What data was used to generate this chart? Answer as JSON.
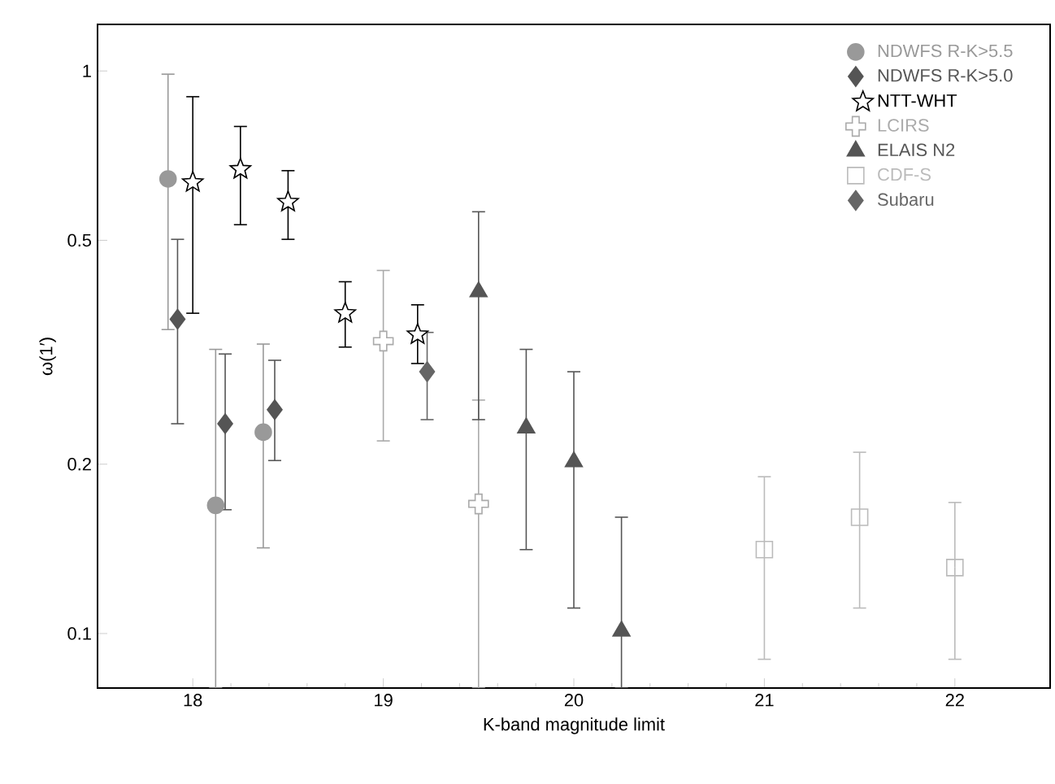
{
  "chart_data": {
    "type": "scatter",
    "xlabel": "K-band magnitude limit",
    "ylabel": "ω(1′)",
    "log": "y",
    "xlim": [
      17.5,
      22.5
    ],
    "xticks": [
      18,
      19,
      20,
      21,
      22
    ],
    "ylim": [
      0.08,
      1.21
    ],
    "yticks": [
      0.1,
      0.2,
      0.5,
      1
    ],
    "legend": "top right",
    "series": [
      {
        "name": "NDWFS R-K>5.5",
        "color": "#999999",
        "marker": "circle",
        "x": [
          17.87,
          18.12,
          18.37
        ],
        "values": [
          0.643,
          0.169,
          0.228
        ],
        "errors": [
          [
            0.347,
            0.987
          ],
          [
            0.08,
            0.32
          ],
          [
            0.142,
            0.327
          ]
        ]
      },
      {
        "name": "NDWFS R-K>5.0",
        "color": "#555555",
        "marker": "diamond",
        "x": [
          17.92,
          18.17,
          18.43
        ],
        "values": [
          0.362,
          0.236,
          0.25
        ],
        "errors": [
          [
            0.236,
            0.502
          ],
          [
            0.166,
            0.314
          ],
          [
            0.203,
            0.306
          ]
        ]
      },
      {
        "name": "NTT-WHT",
        "color": "#000000",
        "marker": "star",
        "x": [
          18.0,
          18.25,
          18.5,
          18.8,
          19.18
        ],
        "values": [
          0.634,
          0.669,
          0.585,
          0.371,
          0.34
        ],
        "errors": [
          [
            0.371,
            0.9
          ],
          [
            0.533,
            0.797
          ],
          [
            0.502,
            0.665
          ],
          [
            0.323,
            0.422
          ],
          [
            0.302,
            0.384
          ]
        ]
      },
      {
        "name": "LCIRS",
        "color": "#aaaaaa",
        "marker": "cross",
        "x": [
          19.0,
          19.5
        ],
        "values": [
          0.331,
          0.17
        ],
        "errors": [
          [
            0.22,
            0.442
          ],
          [
            0.08,
            0.26
          ]
        ]
      },
      {
        "name": "ELAIS N2",
        "color": "#555555",
        "marker": "triangle",
        "x": [
          19.5,
          19.75,
          20.0,
          20.25
        ],
        "values": [
          0.405,
          0.232,
          0.202,
          0.101
        ],
        "errors": [
          [
            0.24,
            0.562
          ],
          [
            0.141,
            0.32
          ],
          [
            0.111,
            0.292
          ],
          [
            0.08,
            0.161
          ]
        ]
      },
      {
        "name": "CDF-S",
        "color": "#bbbbbb",
        "marker": "square",
        "x": [
          21.0,
          21.5,
          22.0
        ],
        "values": [
          0.141,
          0.161,
          0.131
        ],
        "errors": [
          [
            0.09,
            0.19
          ],
          [
            0.111,
            0.21
          ],
          [
            0.09,
            0.171
          ]
        ]
      },
      {
        "name": "Subaru",
        "color": "#666666",
        "marker": "diamond",
        "x": [
          19.23
        ],
        "values": [
          0.292
        ],
        "errors": [
          [
            0.24,
            0.343
          ]
        ]
      }
    ]
  }
}
